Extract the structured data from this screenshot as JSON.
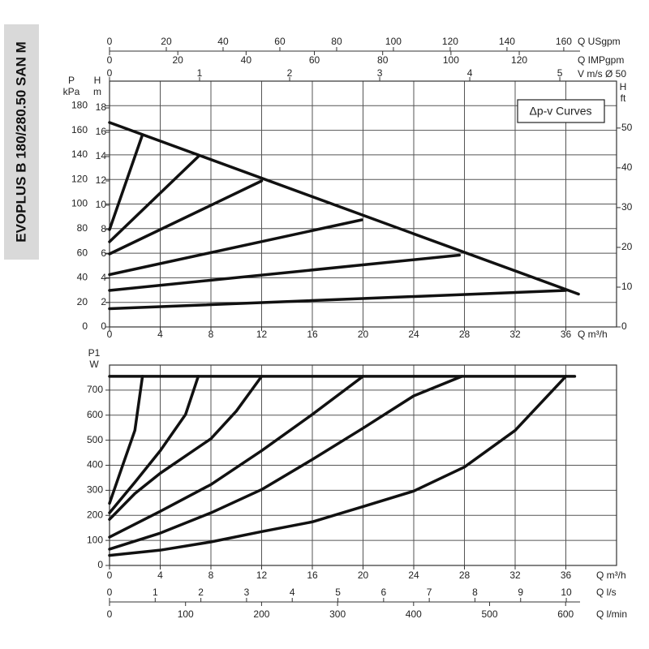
{
  "side_title": "EVOPLUS B 180/280.50 SAN M",
  "chart_data": [
    {
      "type": "line",
      "legend_box": "Δp-v Curves",
      "xlabel": "Q m³/h",
      "xlim": [
        0,
        40
      ],
      "xticks": [
        0,
        4,
        8,
        12,
        16,
        20,
        24,
        28,
        32,
        36
      ],
      "x2label": "Q USgpm",
      "x2lim": [
        0,
        178.6
      ],
      "x2ticks": [
        0,
        20,
        40,
        60,
        80,
        100,
        120,
        140,
        160
      ],
      "x3label": "Q IMPgpm",
      "x3lim": [
        0,
        148.5
      ],
      "x3ticks": [
        0,
        20,
        40,
        60,
        80,
        100,
        120
      ],
      "x4label": "V m/s Ø 50",
      "x4lim": [
        0,
        5.63
      ],
      "x4ticks": [
        0,
        1,
        2,
        3,
        4,
        5
      ],
      "ylabel": [
        "P",
        "kPa"
      ],
      "ylim": [
        0,
        200
      ],
      "yticks": [
        0,
        20,
        40,
        60,
        80,
        100,
        120,
        140,
        160,
        180
      ],
      "y2label": [
        "H",
        "m"
      ],
      "y2lim": [
        0,
        20.2
      ],
      "y2ticks": [
        0,
        2,
        4,
        6,
        8,
        10,
        12,
        14,
        16,
        18
      ],
      "y3label": [
        "H",
        "ft"
      ],
      "y3lim": [
        0,
        61.8
      ],
      "y3ticks": [
        0,
        10,
        20,
        30,
        40,
        50
      ],
      "grid": true,
      "series": [
        {
          "color": "#111",
          "axis": "y2",
          "x": [
            0,
            37
          ],
          "values": [
            16.8,
            2.7
          ]
        },
        {
          "color": "#111",
          "axis": "y2",
          "x": [
            0,
            2.6
          ],
          "values": [
            8,
            15.8
          ]
        },
        {
          "color": "#111",
          "axis": "y2",
          "x": [
            0,
            7
          ],
          "values": [
            7,
            14
          ]
        },
        {
          "color": "#111",
          "axis": "y2",
          "x": [
            0,
            12
          ],
          "values": [
            6,
            12
          ]
        },
        {
          "color": "#111",
          "axis": "y2",
          "x": [
            0,
            19.9
          ],
          "values": [
            4.3,
            8.8
          ]
        },
        {
          "color": "#111",
          "axis": "y2",
          "x": [
            0,
            27.6
          ],
          "values": [
            3,
            5.9
          ]
        },
        {
          "color": "#111",
          "axis": "y2",
          "x": [
            0,
            36
          ],
          "values": [
            1.5,
            3
          ]
        }
      ]
    },
    {
      "type": "line",
      "xlabel": "Q m³/h",
      "xlim": [
        0,
        40
      ],
      "xticks": [
        0,
        4,
        8,
        12,
        16,
        20,
        24,
        28,
        32,
        36
      ],
      "x2label": "Q l/s",
      "x2lim": [
        0,
        11.1
      ],
      "x2ticks": [
        0,
        1,
        2,
        3,
        4,
        5,
        6,
        7,
        8,
        9,
        10
      ],
      "x3label": "Q l/min",
      "x3lim": [
        0,
        667
      ],
      "x3ticks": [
        0,
        100,
        200,
        300,
        400,
        500,
        600
      ],
      "ylabel": [
        "P1",
        "W"
      ],
      "ylim": [
        0,
        800
      ],
      "yticks": [
        0,
        100,
        200,
        300,
        400,
        500,
        600,
        700
      ],
      "grid": true,
      "series": [
        {
          "color": "#111",
          "x": [
            0,
            36.7
          ],
          "values": [
            755,
            755
          ]
        },
        {
          "color": "#111",
          "x": [
            0,
            1,
            2,
            2.6
          ],
          "values": [
            248,
            394,
            539,
            755
          ]
        },
        {
          "color": "#111",
          "x": [
            0,
            2,
            4,
            6,
            7
          ],
          "values": [
            210,
            332,
            458,
            603,
            755
          ]
        },
        {
          "color": "#111",
          "x": [
            0,
            2,
            4,
            8,
            10,
            12
          ],
          "values": [
            184,
            287,
            368,
            506,
            616,
            755
          ]
        },
        {
          "color": "#111",
          "x": [
            0,
            4,
            8,
            12,
            16,
            20
          ],
          "values": [
            113,
            216,
            323,
            458,
            603,
            755
          ]
        },
        {
          "color": "#111",
          "x": [
            0,
            4,
            8,
            12,
            16,
            20,
            24,
            27.8
          ],
          "values": [
            65,
            129,
            210,
            303,
            423,
            548,
            677,
            755
          ]
        },
        {
          "color": "#111",
          "x": [
            0,
            4,
            8,
            12,
            16,
            20,
            24,
            28,
            32,
            36
          ],
          "values": [
            40,
            61,
            94,
            135,
            174,
            235,
            297,
            393,
            539,
            755
          ]
        }
      ]
    }
  ]
}
